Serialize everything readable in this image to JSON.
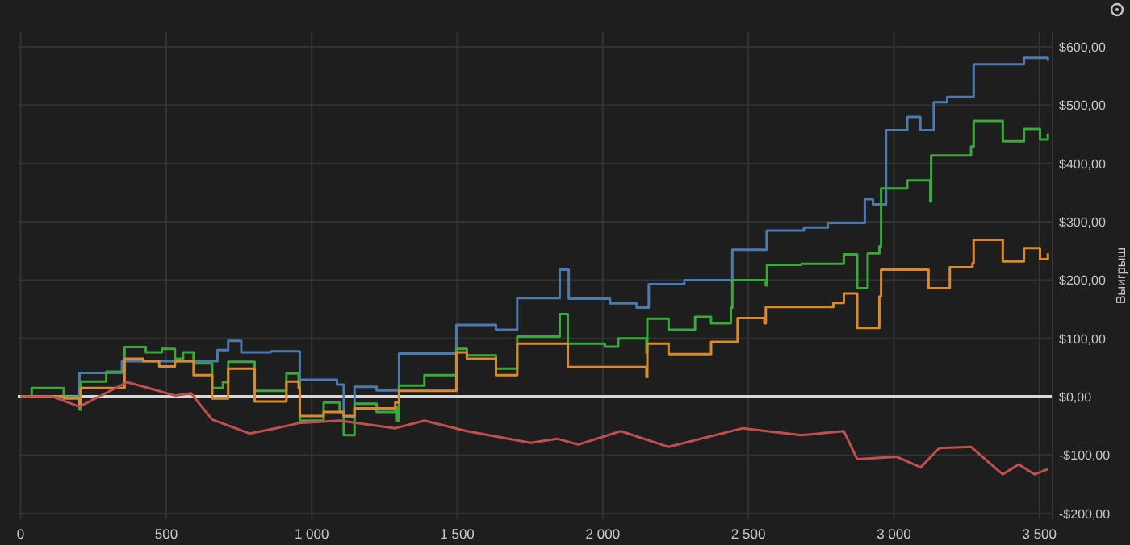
{
  "chart_data": {
    "type": "step",
    "ylabel": "Выигрыш",
    "xlim": [
      -10,
      3545
    ],
    "xticks": [
      0,
      500,
      {
        "value": 1000,
        "label": "1 000"
      },
      {
        "value": 1500,
        "label": "1 500"
      },
      {
        "value": 2000,
        "label": "2 000"
      },
      {
        "value": 2500,
        "label": "2 500"
      },
      {
        "value": 3000,
        "label": "3 000"
      },
      {
        "value": 3500,
        "label": "3 500"
      }
    ],
    "ylim": [
      -210,
      625
    ],
    "yticks": [
      {
        "value": -200,
        "label": "-$200,00"
      },
      {
        "value": -100,
        "label": "-$100,00"
      },
      {
        "value": 0,
        "label": "$0,00"
      },
      {
        "value": 100,
        "label": "$100,00"
      },
      {
        "value": 200,
        "label": "$200,00"
      },
      {
        "value": 300,
        "label": "$300,00"
      },
      {
        "value": 400,
        "label": "$400,00"
      },
      {
        "value": 500,
        "label": "$500,00"
      },
      {
        "value": 600,
        "label": "$600,00"
      }
    ],
    "grid": true,
    "ref_lines": [
      {
        "axis": "y",
        "value": 0,
        "color": "#d8d8d8"
      }
    ],
    "series": [
      {
        "color": "#4a7ab0",
        "x": [
          0,
          202,
          348,
          676,
          713,
          758,
          859,
          959,
          1087,
          1110,
          1147,
          1223,
          1300,
          1497,
          1633,
          1706,
          1852,
          1883,
          2025,
          2116,
          2158,
          2280,
          2445,
          2563,
          2691,
          2773,
          2900,
          2928,
          2973,
          3046,
          3091,
          3137,
          3183,
          3274,
          3447,
          3529
        ],
        "values": [
          0,
          41,
          61,
          80,
          96,
          76,
          78,
          29,
          21,
          -35,
          17,
          11,
          74,
          123,
          115,
          169,
          218,
          168,
          160,
          153,
          193,
          200,
          252,
          285,
          290,
          298,
          339,
          330,
          457,
          480,
          457,
          505,
          514,
          570,
          581,
          576
        ]
      },
      {
        "color": "#3aa83a",
        "x": [
          0,
          38,
          148,
          202,
          206,
          294,
          357,
          430,
          485,
          530,
          558,
          594,
          658,
          695,
          713,
          804,
          913,
          955,
          959,
          1041,
          1096,
          1110,
          1147,
          1223,
          1287,
          1293,
          1300,
          1387,
          1497,
          1533,
          1633,
          1706,
          1852,
          1880,
          2007,
          2053,
          2150,
          2153,
          2226,
          2317,
          2372,
          2440,
          2445,
          2560,
          2564,
          2682,
          2828,
          2874,
          2910,
          2950,
          2956,
          3046,
          3125,
          3128,
          3265,
          3274,
          3374,
          3447,
          3502,
          3529
        ],
        "values": [
          0,
          15,
          -1,
          -22,
          26,
          43,
          85,
          76,
          82,
          65,
          76,
          57,
          15,
          25,
          60,
          10,
          40,
          26,
          -41,
          -10,
          -26,
          -66,
          -12,
          -26,
          -17,
          -41,
          19,
          37,
          82,
          71,
          48,
          103,
          142,
          91,
          86,
          100,
          75,
          134,
          115,
          137,
          126,
          153,
          200,
          191,
          226,
          228,
          244,
          186,
          246,
          258,
          357,
          371,
          335,
          414,
          429,
          473,
          438,
          459,
          441,
          451
        ]
      },
      {
        "color": "#d98a2e",
        "x": [
          0,
          148,
          202,
          206,
          357,
          421,
          476,
          530,
          594,
          658,
          713,
          804,
          913,
          955,
          959,
          1041,
          1110,
          1147,
          1287,
          1300,
          1497,
          1533,
          1633,
          1706,
          1880,
          2150,
          2153,
          2226,
          2372,
          2463,
          2555,
          2560,
          2792,
          2828,
          2874,
          2950,
          2956,
          3119,
          3192,
          3270,
          3274,
          3374,
          3447,
          3502,
          3529
        ],
        "values": [
          0,
          -3,
          -17,
          15,
          65,
          61,
          52,
          61,
          37,
          -3,
          48,
          -8,
          26,
          15,
          -33,
          -26,
          -33,
          -20,
          -10,
          10,
          76,
          65,
          37,
          91,
          51,
          34,
          91,
          73,
          94,
          135,
          126,
          154,
          161,
          177,
          118,
          172,
          218,
          186,
          222,
          229,
          269,
          232,
          255,
          236,
          246
        ]
      },
      {
        "type": "line",
        "color": "#c0504d",
        "x": [
          0,
          111,
          202,
          366,
          439,
          530,
          585,
          658,
          786,
          877,
          959,
          1096,
          1287,
          1387,
          1533,
          1752,
          1843,
          1916,
          2062,
          2226,
          2481,
          2682,
          2828,
          2874,
          3010,
          3092,
          3156,
          3265,
          3374,
          3429,
          3483,
          3529
        ],
        "values": [
          0,
          0,
          -17,
          25,
          15,
          2,
          6,
          -39,
          -63,
          -54,
          -45,
          -41,
          -54,
          -41,
          -59,
          -79,
          -72,
          -82,
          -59,
          -86,
          -54,
          -66,
          -59,
          -107,
          -103,
          -121,
          -88,
          -86,
          -133,
          -116,
          -133,
          -124
        ]
      }
    ]
  }
}
